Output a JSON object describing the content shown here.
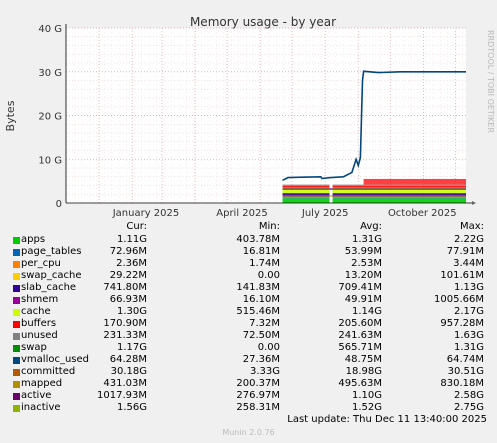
{
  "chart_data": {
    "type": "line",
    "title": "Memory usage - by year",
    "ylabel": "Bytes",
    "ylim": [
      0,
      40
    ],
    "y_unit": "G",
    "yticks": [
      "0",
      "10 G",
      "20 G",
      "30 G",
      "40 G"
    ],
    "xticks": [
      "January 2025",
      "April 2025",
      "July 2025",
      "October 2025"
    ],
    "side_label": "RRDTOOL / TOBI OETIKER",
    "footer": "Munin 2.0.76",
    "last_update": "Last update: Thu Dec 11 13:40:00 2025",
    "x_range": [
      "2024-12-01",
      "2025-12-11"
    ],
    "committed_series": [
      [
        "2025-06-22",
        5.2
      ],
      [
        "2025-06-27",
        5.8
      ],
      [
        "2025-07-10",
        5.9
      ],
      [
        "2025-07-28",
        6.0
      ],
      [
        "2025-07-29",
        5.6
      ],
      [
        "2025-08-06",
        5.8
      ],
      [
        "2025-08-18",
        6.0
      ],
      [
        "2025-08-26",
        7.0
      ],
      [
        "2025-08-30",
        10.0
      ],
      [
        "2025-09-01",
        8.6
      ],
      [
        "2025-09-03",
        10.4
      ],
      [
        "2025-09-05",
        28.0
      ],
      [
        "2025-09-06",
        30.1
      ],
      [
        "2025-09-20",
        29.8
      ],
      [
        "2025-10-10",
        30.0
      ],
      [
        "2025-11-01",
        30.0
      ],
      [
        "2025-12-11",
        30.0
      ]
    ],
    "legend_headers": [
      "Cur:",
      "Min:",
      "Avg:",
      "Max:"
    ],
    "series": [
      {
        "name": "apps",
        "color": "#00cc00",
        "cur": "1.11G",
        "min": "403.78M",
        "avg": "1.31G",
        "max": "2.22G"
      },
      {
        "name": "page_tables",
        "color": "#0066b3",
        "cur": "72.96M",
        "min": "16.81M",
        "avg": "53.99M",
        "max": "77.91M"
      },
      {
        "name": "per_cpu",
        "color": "#ff8000",
        "cur": "2.36M",
        "min": "1.74M",
        "avg": "2.53M",
        "max": "3.44M"
      },
      {
        "name": "swap_cache",
        "color": "#ffcc00",
        "cur": "29.22M",
        "min": "0.00",
        "avg": "13.20M",
        "max": "101.61M"
      },
      {
        "name": "slab_cache",
        "color": "#330099",
        "cur": "741.80M",
        "min": "141.83M",
        "avg": "709.41M",
        "max": "1.13G"
      },
      {
        "name": "shmem",
        "color": "#990099",
        "cur": "66.93M",
        "min": "16.10M",
        "avg": "49.91M",
        "max": "1005.66M"
      },
      {
        "name": "cache",
        "color": "#ccff00",
        "cur": "1.30G",
        "min": "515.46M",
        "avg": "1.14G",
        "max": "2.17G"
      },
      {
        "name": "buffers",
        "color": "#ff0000",
        "cur": "170.90M",
        "min": "7.32M",
        "avg": "205.60M",
        "max": "957.28M"
      },
      {
        "name": "unused",
        "color": "#808080",
        "cur": "231.33M",
        "min": "72.50M",
        "avg": "241.63M",
        "max": "1.63G"
      },
      {
        "name": "swap",
        "color": "#008f00",
        "cur": "1.17G",
        "min": "0.00",
        "avg": "565.71M",
        "max": "1.31G"
      },
      {
        "name": "vmalloc_used",
        "color": "#00487d",
        "cur": "64.28M",
        "min": "27.36M",
        "avg": "48.75M",
        "max": "64.74M"
      },
      {
        "name": "committed",
        "color": "#b35a00",
        "cur": "30.18G",
        "min": "3.33G",
        "avg": "18.98G",
        "max": "30.51G"
      },
      {
        "name": "mapped",
        "color": "#b38f00",
        "cur": "431.03M",
        "min": "200.37M",
        "avg": "495.63M",
        "max": "830.18M"
      },
      {
        "name": "active",
        "color": "#6b006b",
        "cur": "1017.93M",
        "min": "276.97M",
        "avg": "1.10G",
        "max": "2.58G"
      },
      {
        "name": "inactive",
        "color": "#8fb300",
        "cur": "1.56G",
        "min": "258.31M",
        "avg": "1.52G",
        "max": "2.75G"
      }
    ],
    "line_colors": {
      "committed": "#00487d"
    }
  }
}
